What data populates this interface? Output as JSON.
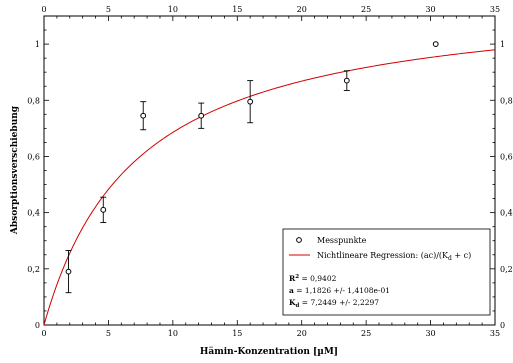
{
  "chart_data": {
    "type": "scatter",
    "xlabel": "Hämin-Konzentration [µM]",
    "ylabel": "Absorptionsverschiebung",
    "xlim": [
      0,
      35
    ],
    "ylim": [
      0,
      1.1
    ],
    "x_ticks": [
      0,
      5,
      10,
      15,
      20,
      25,
      30,
      35
    ],
    "x_tick_labels": [
      "0",
      "5",
      "10",
      "15",
      "20",
      "25",
      "30",
      "35"
    ],
    "y_ticks": [
      0,
      0.2,
      0.4,
      0.6,
      0.8,
      1.0
    ],
    "y_tick_labels_left": [
      "0",
      "0,2",
      "0,4",
      "0,6",
      "0,8",
      "1"
    ],
    "y_tick_labels_right": [
      "0",
      "0,2",
      "0,4",
      "0,6",
      "0,8",
      "1"
    ],
    "grid": false,
    "legend_position": "bottom-right",
    "series": [
      {
        "name": "Messpunkte",
        "kind": "points-with-error-bars",
        "x": [
          1.9,
          4.6,
          7.7,
          12.2,
          16.0,
          23.5,
          30.4
        ],
        "y": [
          0.19,
          0.41,
          0.745,
          0.745,
          0.795,
          0.87,
          1.0
        ],
        "error": [
          0.075,
          0.045,
          0.05,
          0.045,
          0.075,
          0.035,
          0
        ]
      },
      {
        "name": "Nichtlineare Regression: (ac)/(K",
        "name_sub": "d",
        "name_tail": " + c)",
        "kind": "fit-line",
        "color": "#d40000",
        "a": 1.1826,
        "Kd": 7.2449
      }
    ],
    "stats": {
      "r2_label": "R",
      "r2_sup": "2",
      "r2_value": " = 0,9402",
      "a_label": "a",
      "a_value": " = 1,1826 +/- 1,4108e-01",
      "kd_label": "K",
      "kd_sub": "d",
      "kd_value": " = 7,2449 +/- 2,2297"
    }
  }
}
